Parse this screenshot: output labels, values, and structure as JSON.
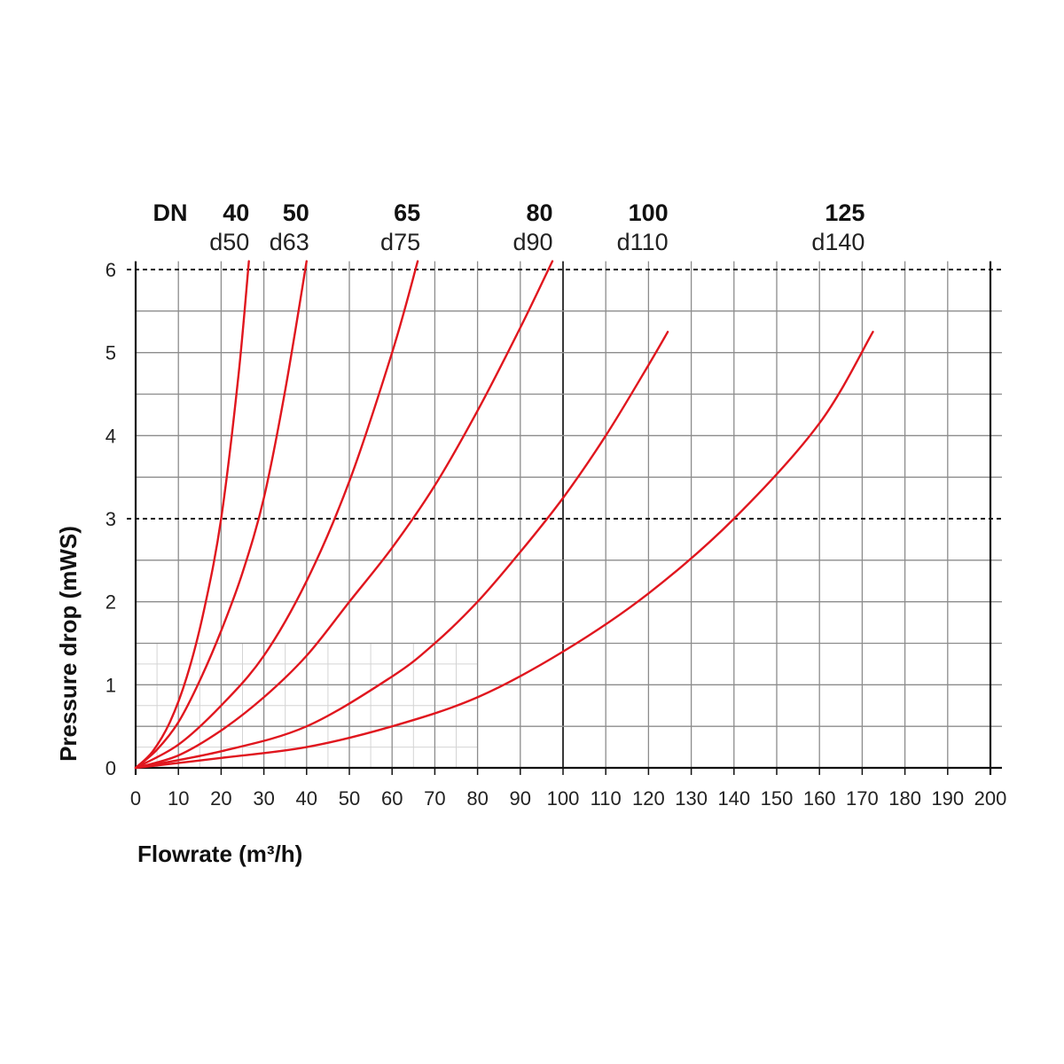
{
  "chart_data": {
    "type": "line",
    "xlabel": "Flowrate (m³/h)",
    "ylabel": "Pressure drop (mWS)",
    "xlim": [
      0,
      200
    ],
    "ylim": [
      0,
      6
    ],
    "x_ticks": [
      "0",
      "10",
      "20",
      "30",
      "40",
      "50",
      "60",
      "70",
      "80",
      "90",
      "100",
      "110",
      "120",
      "130",
      "140",
      "150",
      "160",
      "170",
      "180",
      "190",
      "200"
    ],
    "y_ticks": [
      "0",
      "1",
      "2",
      "3",
      "4",
      "5",
      "6"
    ],
    "grid": true,
    "reference_lines": [
      3,
      6
    ],
    "line_color": "#e0161e",
    "header_label": "DN",
    "series": [
      {
        "dn": "40",
        "d": "d50",
        "label_x": 26,
        "x": [
          0,
          4,
          8,
          12,
          16,
          20,
          24,
          26.5
        ],
        "y": [
          0,
          0.2,
          0.55,
          1.1,
          1.9,
          3.0,
          4.7,
          6.1
        ]
      },
      {
        "dn": "50",
        "d": "d63",
        "label_x": 40,
        "x": [
          0,
          5,
          10,
          15,
          20,
          25,
          30,
          35,
          40
        ],
        "y": [
          0,
          0.22,
          0.55,
          1.05,
          1.65,
          2.35,
          3.25,
          4.55,
          6.1
        ]
      },
      {
        "dn": "65",
        "d": "d75",
        "label_x": 66,
        "x": [
          0,
          10,
          20,
          30,
          40,
          50,
          60,
          66
        ],
        "y": [
          0,
          0.28,
          0.75,
          1.35,
          2.25,
          3.45,
          5.0,
          6.1
        ]
      },
      {
        "dn": "80",
        "d": "d90",
        "label_x": 97,
        "x": [
          0,
          10,
          20,
          30,
          40,
          50,
          60,
          70,
          80,
          90,
          97.5
        ],
        "y": [
          0,
          0.15,
          0.45,
          0.85,
          1.35,
          2.0,
          2.65,
          3.4,
          4.3,
          5.3,
          6.1
        ]
      },
      {
        "dn": "100",
        "d": "d110",
        "label_x": 124,
        "x": [
          0,
          20,
          40,
          60,
          70,
          80,
          90,
          100,
          110,
          120,
          124.5
        ],
        "y": [
          0,
          0.2,
          0.5,
          1.1,
          1.5,
          2.0,
          2.6,
          3.25,
          4.0,
          4.85,
          5.25
        ]
      },
      {
        "dn": "125",
        "d": "d140",
        "label_x": 170,
        "x": [
          0,
          20,
          40,
          60,
          80,
          100,
          120,
          140,
          160,
          172.5
        ],
        "y": [
          0,
          0.12,
          0.25,
          0.5,
          0.85,
          1.4,
          2.1,
          3.0,
          4.15,
          5.25
        ]
      }
    ]
  }
}
